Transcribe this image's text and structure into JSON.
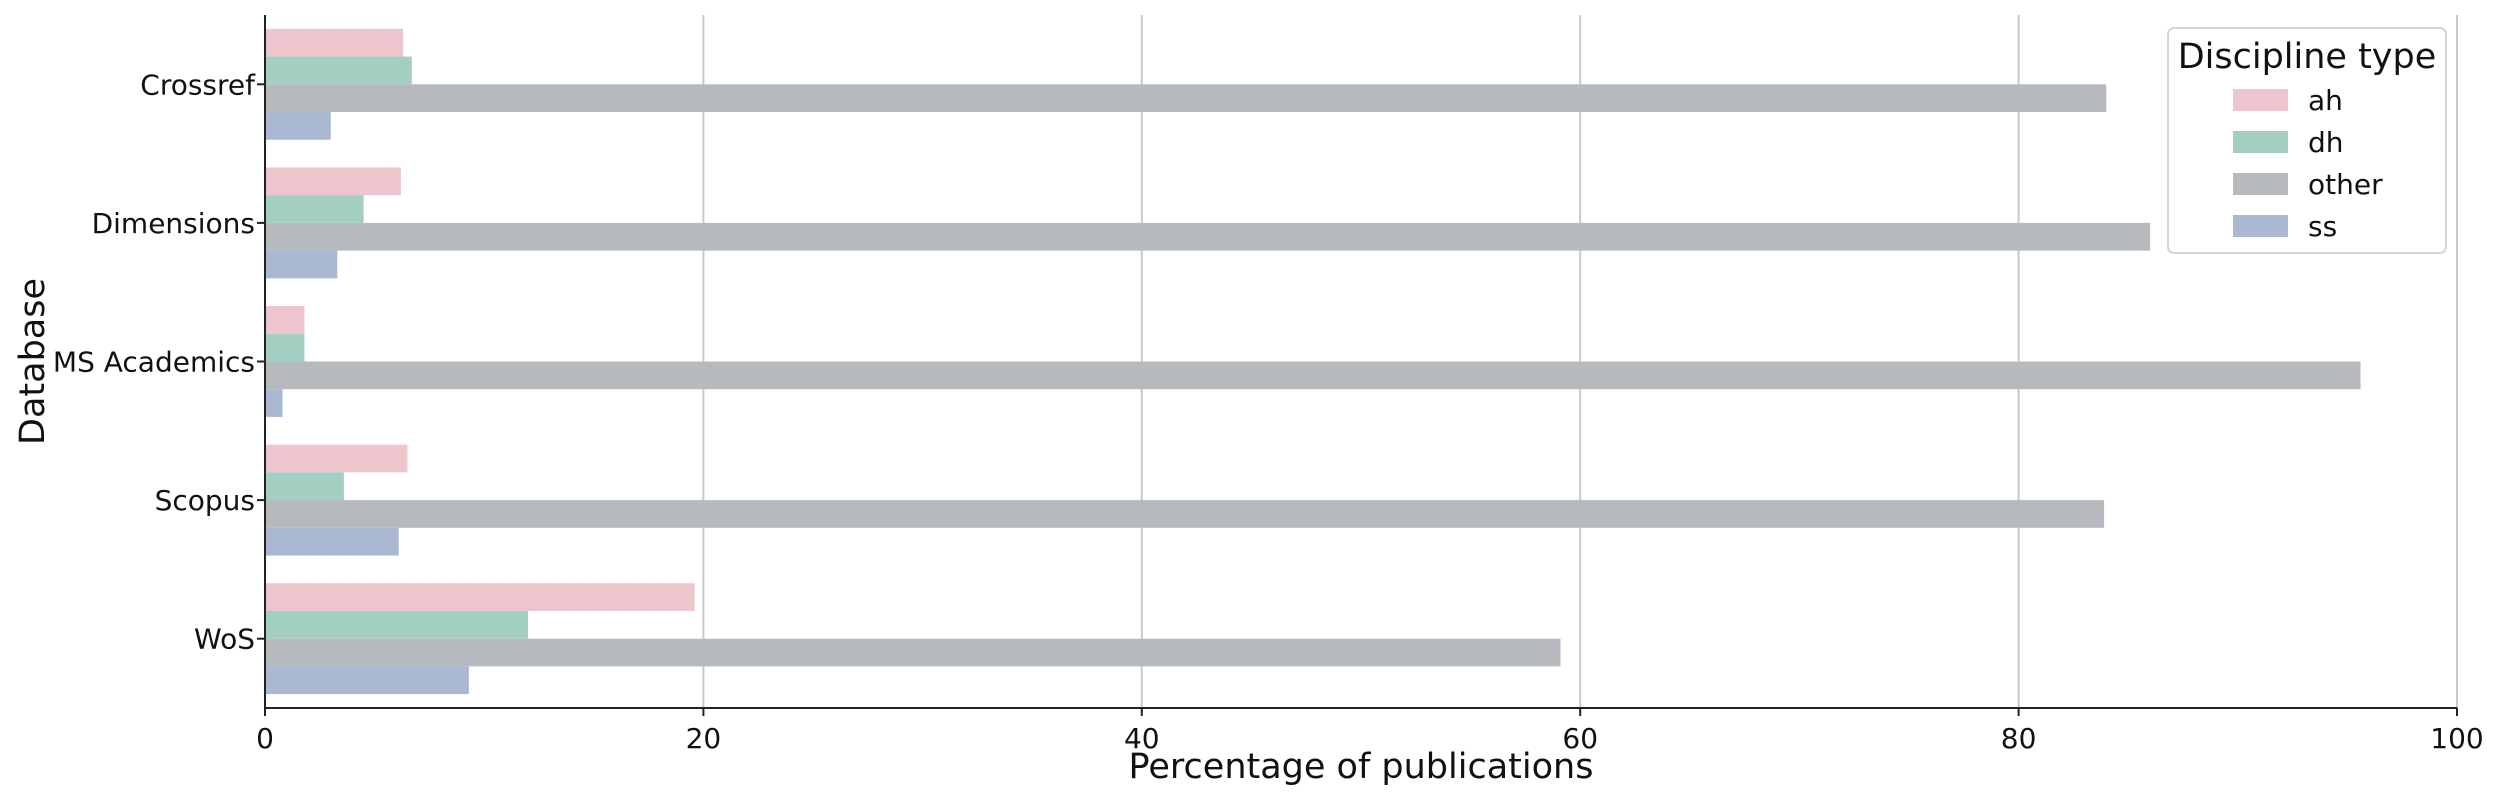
{
  "chart_data": {
    "type": "bar",
    "orientation": "horizontal",
    "title": "",
    "xlabel": "Percentage of publications",
    "ylabel": "Database",
    "xlim": [
      0,
      100
    ],
    "xticks": [
      0,
      20,
      40,
      60,
      80,
      100
    ],
    "categories": [
      "Crossref",
      "Dimensions",
      "MS Academics",
      "Scopus",
      "WoS"
    ],
    "grid": "vertical",
    "legend": {
      "title": "Discipline type",
      "placement": "top-right"
    },
    "series": [
      {
        "name": "ah",
        "color": "#ecc6cc",
        "values": [
          6.3,
          6.2,
          1.8,
          6.5,
          19.6
        ]
      },
      {
        "name": "dh",
        "color": "#a3cfc3",
        "values": [
          6.7,
          4.5,
          1.8,
          3.6,
          12.0
        ]
      },
      {
        "name": "other",
        "color": "#b6b9be",
        "values": [
          84.0,
          86.0,
          95.6,
          83.9,
          59.1
        ]
      },
      {
        "name": "ss",
        "color": "#abb8d2",
        "values": [
          3.0,
          3.3,
          0.8,
          6.1,
          9.3
        ]
      }
    ]
  }
}
